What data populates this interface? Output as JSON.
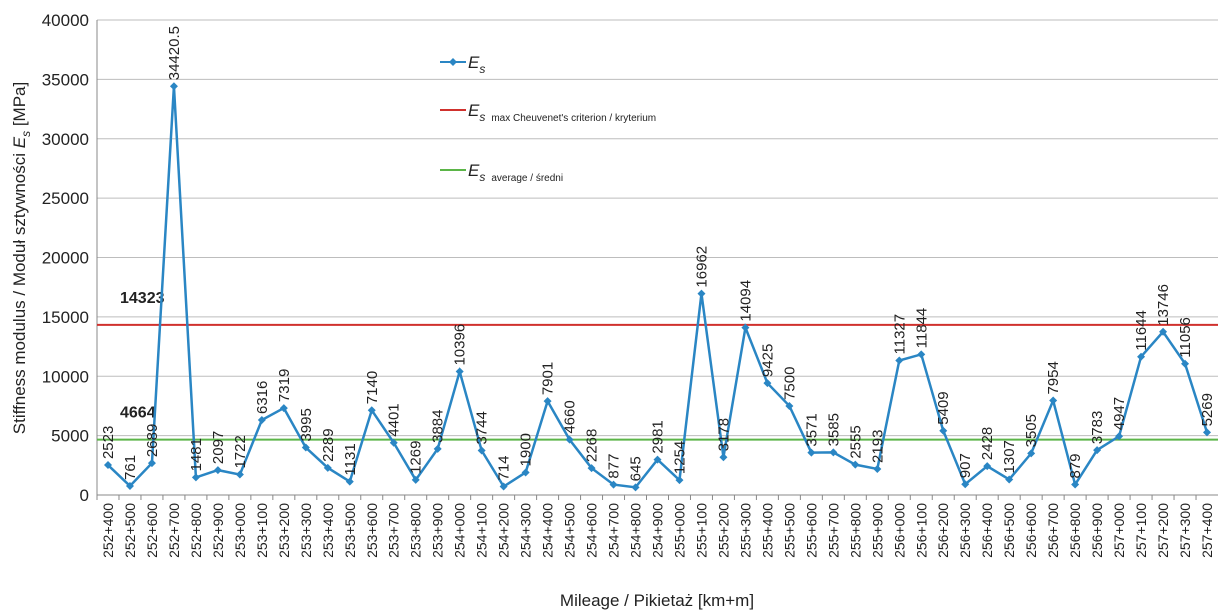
{
  "chart_data": {
    "type": "line",
    "xlabel": "Mileage / Pikietaż [km+m]",
    "ylabel": {
      "text": "Stiffness modulus / Moduł sztywności ",
      "symbol": "E",
      "sub": "s",
      "unit": " [MPa]"
    },
    "categories": [
      "252+400",
      "252+500",
      "252+600",
      "252+700",
      "252+800",
      "252+900",
      "253+000",
      "253+100",
      "253+200",
      "253+300",
      "253+400",
      "253+500",
      "253+600",
      "253+700",
      "253+800",
      "253+900",
      "254+000",
      "254+100",
      "254+200",
      "254+300",
      "254+400",
      "254+500",
      "254+600",
      "254+700",
      "254+800",
      "254+900",
      "255+000",
      "255+100",
      "255+200",
      "255+300",
      "255+400",
      "255+500",
      "255+600",
      "255+700",
      "255+800",
      "255+900",
      "256+000",
      "256+100",
      "256+200",
      "256+300",
      "256+400",
      "256+500",
      "256+600",
      "256+700",
      "256+800",
      "256+900",
      "257+000",
      "257+100",
      "257+200",
      "257+300",
      "257+400"
    ],
    "series": [
      {
        "name": "E",
        "sub": "s",
        "color": "#2a86c4",
        "values": [
          2523,
          761,
          2689,
          34420.5,
          1481,
          2097,
          1722,
          6316,
          7319,
          3995,
          2289,
          1131,
          7140,
          4401,
          1269,
          3884,
          10396,
          3744,
          714,
          1900,
          7901,
          4660,
          2268,
          877,
          645,
          2981,
          1254,
          16962,
          3178,
          14094,
          9425,
          7500,
          3571,
          3585,
          2555,
          2193,
          11327,
          11844,
          5409,
          907,
          2428,
          1307,
          3505,
          7954,
          879,
          3783,
          4947,
          11644,
          13746,
          11056,
          5269
        ]
      }
    ],
    "reference_lines": [
      {
        "name": "E",
        "sub": "s",
        "suffix": "max Cheuvenet's criterion / kryterium",
        "value": 14323,
        "color": "#d0312d"
      },
      {
        "name": "E",
        "sub": "s",
        "suffix": "average / średni",
        "value": 4664,
        "color": "#5bb548"
      }
    ],
    "ylim": [
      0,
      40000
    ],
    "yticks": [
      0,
      5000,
      10000,
      15000,
      20000,
      25000,
      30000,
      35000,
      40000
    ],
    "grid": true
  }
}
